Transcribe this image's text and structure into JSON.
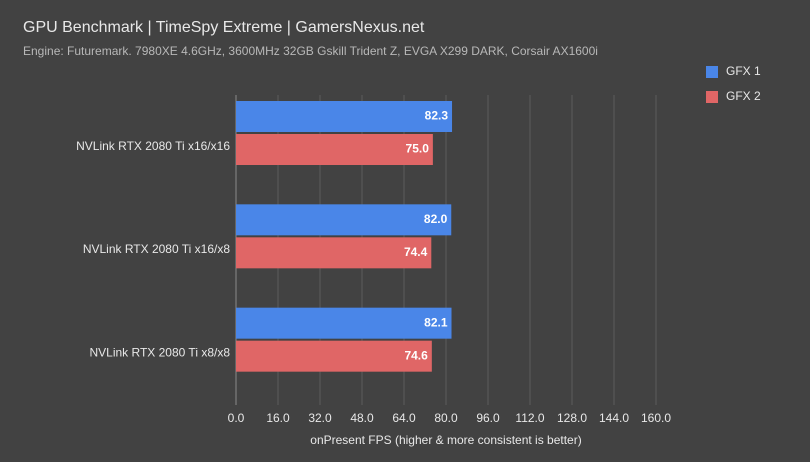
{
  "chart_data": {
    "type": "hbar",
    "title": "GPU Benchmark | TimeSpy Extreme | GamersNexus.net",
    "subtitle": "Engine: Futuremark. 7980XE 4.6GHz, 3600MHz 32GB Gskill Trident Z, EVGA X299 DARK, Corsair AX1600i",
    "x_label": "onPresent FPS (higher & more consistent is better)",
    "categories": [
      "NVLink RTX 2080 Ti x16/x16",
      "NVLink RTX 2080 Ti x16/x8",
      "NVLink RTX 2080 Ti x8/x8"
    ],
    "series": [
      {
        "name": "GFX 1",
        "color": "#4a86e8",
        "values": [
          82.3,
          82.0,
          82.1
        ],
        "value_labels": [
          "82.3",
          "82.0",
          "82.1"
        ]
      },
      {
        "name": "GFX 2",
        "color": "#e06666",
        "values": [
          75.0,
          74.4,
          74.6
        ],
        "value_labels": [
          "75.0",
          "74.4",
          "74.6"
        ]
      }
    ],
    "xlim": [
      0,
      160
    ],
    "xticks": [
      {
        "value": 0,
        "label": "0.0"
      },
      {
        "value": 16,
        "label": "16.0"
      },
      {
        "value": 32,
        "label": "32.0"
      },
      {
        "value": 48,
        "label": "48.0"
      },
      {
        "value": 64,
        "label": "64.0"
      },
      {
        "value": 80,
        "label": "80.0"
      },
      {
        "value": 96,
        "label": "96.0"
      },
      {
        "value": 112,
        "label": "112.0"
      },
      {
        "value": 128,
        "label": "128.0"
      },
      {
        "value": 144,
        "label": "144.0"
      },
      {
        "value": 160,
        "label": "160.0"
      }
    ],
    "grid": true,
    "legend": "top-right"
  }
}
